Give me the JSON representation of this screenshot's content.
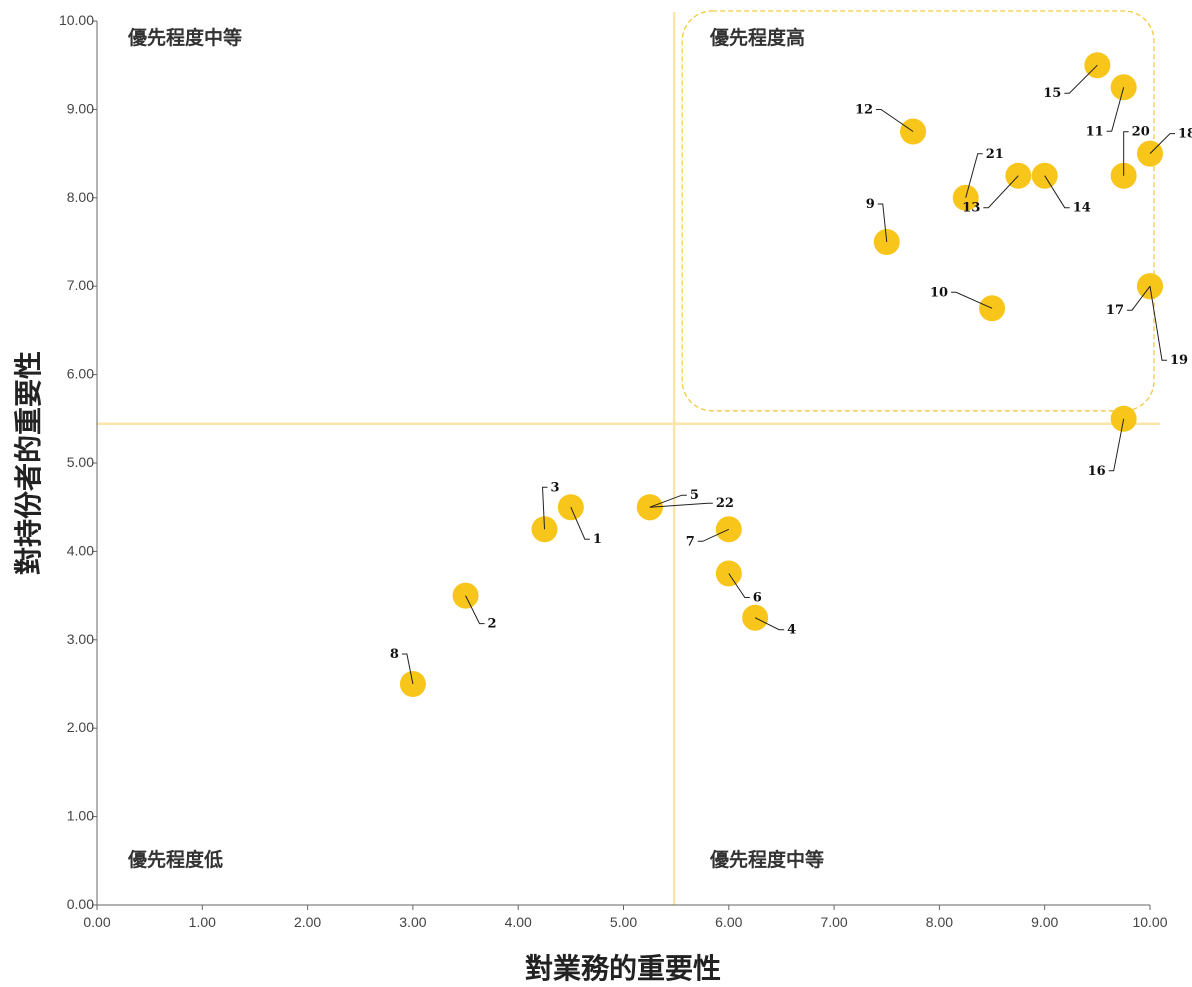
{
  "chart_data": {
    "type": "scatter",
    "xlabel": "對業務的重要性",
    "ylabel": "對持份者的重要性",
    "xlim": [
      0,
      10
    ],
    "ylim": [
      0,
      10
    ],
    "x_ticks": [
      "0.00",
      "1.00",
      "2.00",
      "3.00",
      "4.00",
      "5.00",
      "6.00",
      "7.00",
      "8.00",
      "9.00",
      "10.00"
    ],
    "y_ticks": [
      "0.00",
      "1.00",
      "2.00",
      "3.00",
      "4.00",
      "5.00",
      "6.00",
      "7.00",
      "8.00",
      "9.00",
      "10.00"
    ],
    "grid": false,
    "quadrant_divider": {
      "x": 5.5,
      "y": 5.5
    },
    "quadrant_labels": {
      "top_left": "優先程度中等",
      "top_right": "優先程度高",
      "bottom_left": "優先程度低",
      "bottom_right": "優先程度中等"
    },
    "highlight_region": {
      "x": [
        5.5,
        10
      ],
      "y": [
        5.5,
        10
      ]
    },
    "colors": {
      "point": "#F8C51A",
      "divider": "#FAE6A8",
      "highlight_border": "#F5C842"
    },
    "points": [
      {
        "id": "1",
        "x": 4.5,
        "y": 4.5
      },
      {
        "id": "2",
        "x": 3.5,
        "y": 3.5
      },
      {
        "id": "3",
        "x": 4.25,
        "y": 4.25
      },
      {
        "id": "4",
        "x": 6.25,
        "y": 3.25
      },
      {
        "id": "5",
        "x": 5.25,
        "y": 4.5
      },
      {
        "id": "6",
        "x": 6.0,
        "y": 3.75
      },
      {
        "id": "7",
        "x": 6.0,
        "y": 4.25
      },
      {
        "id": "8",
        "x": 3.0,
        "y": 2.5
      },
      {
        "id": "9",
        "x": 7.5,
        "y": 7.5
      },
      {
        "id": "10",
        "x": 8.5,
        "y": 6.75
      },
      {
        "id": "11",
        "x": 9.75,
        "y": 9.25
      },
      {
        "id": "12",
        "x": 7.75,
        "y": 8.75
      },
      {
        "id": "13",
        "x": 8.75,
        "y": 8.25
      },
      {
        "id": "14",
        "x": 9.0,
        "y": 8.25
      },
      {
        "id": "15",
        "x": 9.5,
        "y": 9.5
      },
      {
        "id": "16",
        "x": 9.75,
        "y": 5.5
      },
      {
        "id": "17",
        "x": 10.0,
        "y": 7.0
      },
      {
        "id": "18",
        "x": 10.0,
        "y": 8.5
      },
      {
        "id": "19",
        "x": 10.0,
        "y": 7.0
      },
      {
        "id": "20",
        "x": 9.75,
        "y": 8.25
      },
      {
        "id": "21",
        "x": 8.25,
        "y": 8.0
      },
      {
        "id": "22",
        "x": 5.25,
        "y": 4.5
      }
    ]
  }
}
